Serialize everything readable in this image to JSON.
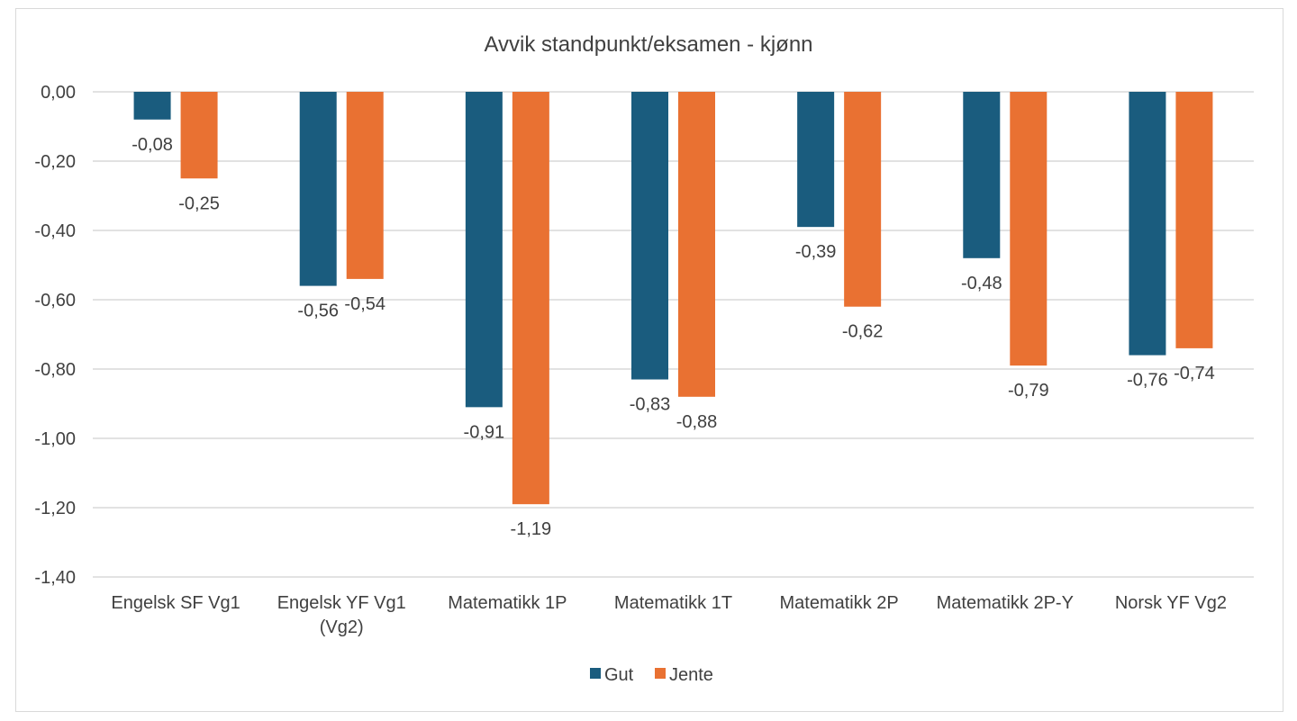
{
  "chart_data": {
    "type": "bar",
    "title": "Avvik standpunkt/eksamen - kjønn",
    "categories": [
      [
        "Engelsk SF Vg1"
      ],
      [
        "Engelsk YF Vg1",
        "(Vg2)"
      ],
      [
        "Matematikk 1P"
      ],
      [
        "Matematikk 1T"
      ],
      [
        "Matematikk 2P"
      ],
      [
        "Matematikk 2P-Y"
      ],
      [
        "Norsk YF Vg2"
      ]
    ],
    "series": [
      {
        "name": "Gut",
        "color": "#1a5c7e",
        "values": [
          -0.08,
          -0.56,
          -0.91,
          -0.83,
          -0.39,
          -0.48,
          -0.76
        ],
        "labels": [
          "-0,08",
          "-0,56",
          "-0,91",
          "-0,83",
          "-0,39",
          "-0,48",
          "-0,76"
        ]
      },
      {
        "name": "Jente",
        "color": "#e97132",
        "values": [
          -0.25,
          -0.54,
          -1.19,
          -0.88,
          -0.62,
          -0.79,
          -0.74
        ],
        "labels": [
          "-0,25",
          "-0,54",
          "-1,19",
          "-0,88",
          "-0,62",
          "-0,79",
          "-0,74"
        ]
      }
    ],
    "ylim": [
      -1.4,
      0
    ],
    "yticks": [
      0,
      -0.2,
      -0.4,
      -0.6,
      -0.8,
      -1.0,
      -1.2,
      -1.4
    ],
    "ytick_labels": [
      "0,00",
      "-0,20",
      "-0,40",
      "-0,60",
      "-0,80",
      "-1,00",
      "-1,20",
      "-1,40"
    ],
    "grid": true,
    "legend_position": "bottom",
    "gridline_color": "#d9d9d9"
  }
}
